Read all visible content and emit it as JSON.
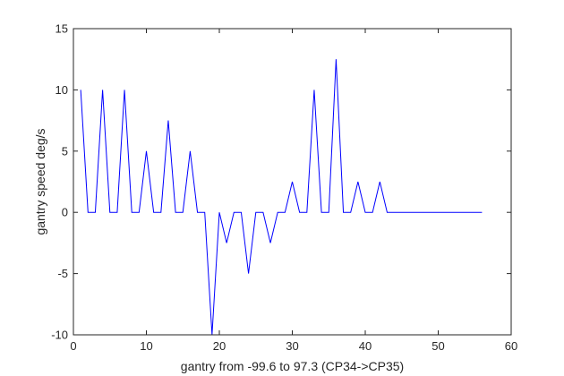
{
  "chart_data": {
    "type": "line",
    "title": "",
    "xlabel": "gantry from -99.6 to 97.3 (CP34->CP35)",
    "ylabel": "gantry speed deg/s",
    "xlim": [
      0,
      60
    ],
    "ylim": [
      -10,
      15
    ],
    "xticks": [
      0,
      10,
      20,
      30,
      40,
      50,
      60
    ],
    "yticks": [
      -10,
      -5,
      0,
      5,
      10,
      15
    ],
    "grid": false,
    "legend": "none",
    "series": [
      {
        "color": "#0000ff",
        "x": [
          1,
          2,
          3,
          4,
          5,
          6,
          7,
          8,
          9,
          10,
          11,
          12,
          13,
          14,
          15,
          16,
          17,
          18,
          19,
          20,
          21,
          22,
          23,
          24,
          25,
          26,
          27,
          28,
          29,
          30,
          31,
          32,
          33,
          34,
          35,
          36,
          37,
          38,
          39,
          40,
          41,
          42,
          43,
          44,
          45,
          46,
          47,
          48,
          49,
          50,
          51,
          52,
          53,
          54,
          55,
          56
        ],
        "y": [
          10,
          0,
          0,
          10,
          0,
          0,
          10,
          0,
          0,
          5,
          0,
          0,
          7.5,
          0,
          0,
          5,
          0,
          0,
          -10,
          0,
          -2.5,
          0,
          0,
          -5,
          0,
          0,
          -2.5,
          0,
          0,
          2.5,
          0,
          0,
          10,
          0,
          0,
          12.5,
          0,
          0,
          2.5,
          0,
          0,
          2.5,
          0,
          0,
          0,
          0,
          0,
          0,
          0,
          0,
          0,
          0,
          0,
          0,
          0,
          0
        ]
      }
    ]
  }
}
